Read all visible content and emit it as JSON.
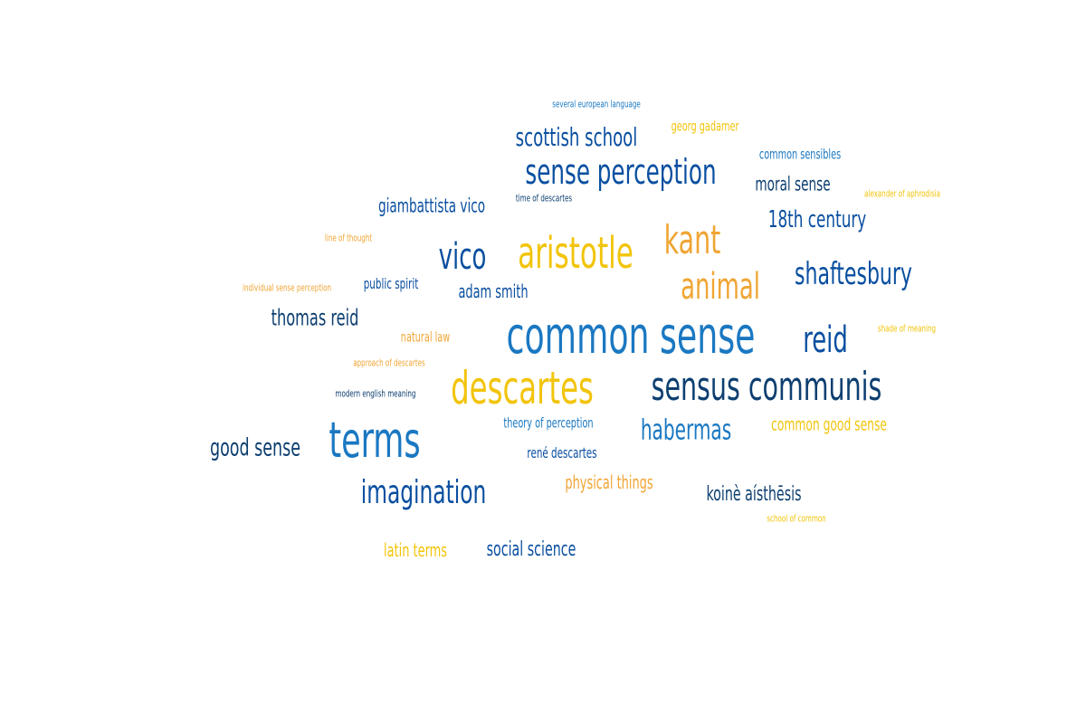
{
  "colors": {
    "navy": "#0d3f70",
    "royal": "#0a4fa0",
    "azure": "#1a78c2",
    "gold": "#f2c40a",
    "orange": "#f0a534"
  },
  "words": [
    {
      "text": "several european language",
      "color": "azure"
    },
    {
      "text": "scottish school",
      "color": "royal"
    },
    {
      "text": "georg gadamer",
      "color": "gold"
    },
    {
      "text": "common sensibles",
      "color": "azure"
    },
    {
      "text": "sense perception",
      "color": "royal"
    },
    {
      "text": "moral sense",
      "color": "navy"
    },
    {
      "text": "time of descartes",
      "color": "navy"
    },
    {
      "text": "alexander of aphrodisia",
      "color": "gold"
    },
    {
      "text": "giambattista vico",
      "color": "royal"
    },
    {
      "text": "18th century",
      "color": "royal"
    },
    {
      "text": "line of thought",
      "color": "orange"
    },
    {
      "text": "kant",
      "color": "orange"
    },
    {
      "text": "vico",
      "color": "royal"
    },
    {
      "text": "aristotle",
      "color": "gold"
    },
    {
      "text": "shaftesbury",
      "color": "royal"
    },
    {
      "text": "animal",
      "color": "orange"
    },
    {
      "text": "individual sense perception",
      "color": "orange"
    },
    {
      "text": "public spirit",
      "color": "royal"
    },
    {
      "text": "adam smith",
      "color": "royal"
    },
    {
      "text": "thomas reid",
      "color": "navy"
    },
    {
      "text": "common sense",
      "color": "azure"
    },
    {
      "text": "reid",
      "color": "royal"
    },
    {
      "text": "shade of meaning",
      "color": "gold"
    },
    {
      "text": "natural law",
      "color": "orange"
    },
    {
      "text": "approach of descartes",
      "color": "orange"
    },
    {
      "text": "descartes",
      "color": "gold"
    },
    {
      "text": "sensus communis",
      "color": "navy"
    },
    {
      "text": "modern english meaning",
      "color": "navy"
    },
    {
      "text": "theory of perception",
      "color": "azure"
    },
    {
      "text": "habermas",
      "color": "azure"
    },
    {
      "text": "common good sense",
      "color": "gold"
    },
    {
      "text": "terms",
      "color": "azure"
    },
    {
      "text": "good sense",
      "color": "navy"
    },
    {
      "text": "rené descartes",
      "color": "royal"
    },
    {
      "text": "physical things",
      "color": "orange"
    },
    {
      "text": "imagination",
      "color": "royal"
    },
    {
      "text": "koinè aísthēsis",
      "color": "navy"
    },
    {
      "text": "school of common",
      "color": "gold"
    },
    {
      "text": "latin terms",
      "color": "gold"
    },
    {
      "text": "social science",
      "color": "royal"
    }
  ]
}
